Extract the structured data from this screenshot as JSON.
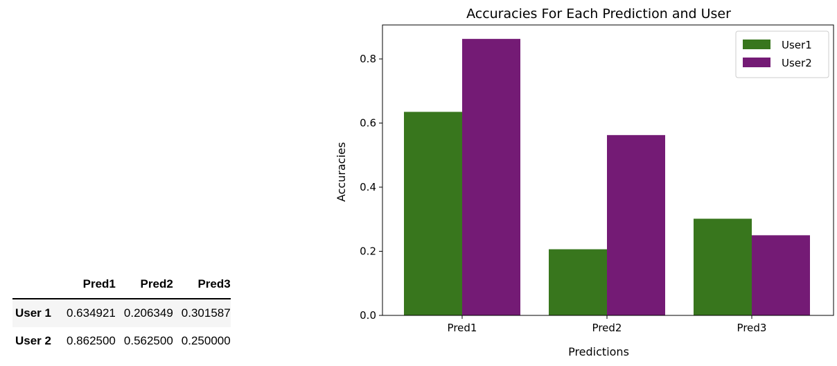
{
  "table": {
    "columns": [
      "Pred1",
      "Pred2",
      "Pred3"
    ],
    "rows": [
      {
        "label": "User 1",
        "cells": [
          "0.634921",
          "0.206349",
          "0.301587"
        ]
      },
      {
        "label": "User 2",
        "cells": [
          "0.862500",
          "0.562500",
          "0.250000"
        ]
      }
    ]
  },
  "colors": {
    "User1": "#38761d",
    "User2": "#741b75"
  },
  "chart_data": {
    "type": "bar",
    "title": "Accuracies For Each Prediction and User",
    "xlabel": "Predictions",
    "ylabel": "Accuracies",
    "categories": [
      "Pred1",
      "Pred2",
      "Pred3"
    ],
    "series": [
      {
        "name": "User1",
        "values": [
          0.634921,
          0.206349,
          0.301587
        ]
      },
      {
        "name": "User2",
        "values": [
          0.8625,
          0.5625,
          0.25
        ]
      }
    ],
    "ylim": [
      0,
      0.906
    ],
    "yticks": [
      0.0,
      0.2,
      0.4,
      0.6,
      0.8
    ],
    "ytick_labels": [
      "0.0",
      "0.2",
      "0.4",
      "0.6",
      "0.8"
    ],
    "legend_position": "top-right",
    "grid": false
  }
}
